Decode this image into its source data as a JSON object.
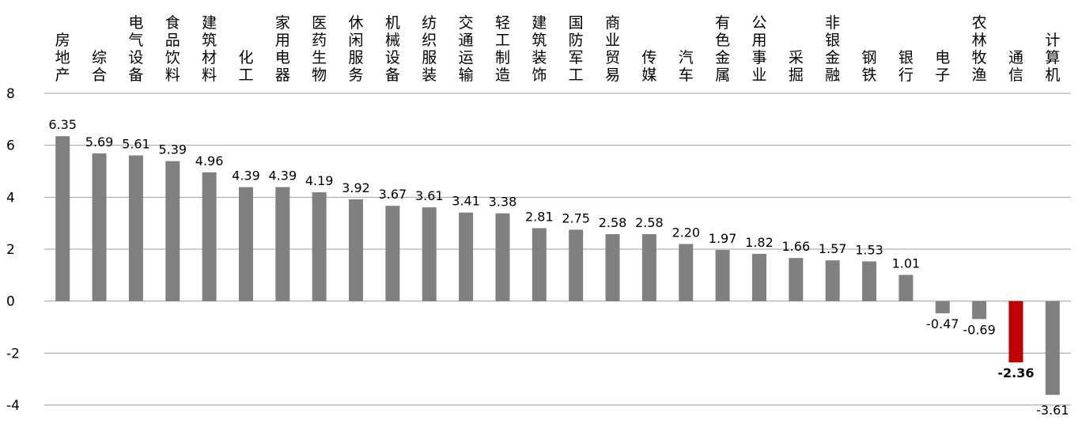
{
  "chart_data": {
    "type": "bar",
    "categories": [
      "房地产",
      "综合",
      "电气设备",
      "食品饮料",
      "建筑材料",
      "化工",
      "家用电器",
      "医药生物",
      "休闲服务",
      "机械设备",
      "纺织服装",
      "交通运输",
      "轻工制造",
      "建筑装饰",
      "国防军工",
      "商业贸易",
      "传媒",
      "汽车",
      "有色金属",
      "公用事业",
      "采掘",
      "非银金融",
      "钢铁",
      "银行",
      "电子",
      "农林牧渔",
      "通信",
      "计算机"
    ],
    "values": [
      6.35,
      5.69,
      5.61,
      5.39,
      4.96,
      4.39,
      4.39,
      4.19,
      3.92,
      3.67,
      3.61,
      3.41,
      3.38,
      2.81,
      2.75,
      2.58,
      2.58,
      2.2,
      1.97,
      1.82,
      1.66,
      1.57,
      1.53,
      1.01,
      -0.47,
      -0.69,
      -2.36,
      -3.61
    ],
    "value_labels": [
      "6.35",
      "5.69",
      "5.61",
      "5.39",
      "4.96",
      "4.39",
      "4.39",
      "4.19",
      "3.92",
      "3.67",
      "3.61",
      "3.41",
      "3.38",
      "2.81",
      "2.75",
      "2.58",
      "2.58",
      "2.20",
      "1.97",
      "1.82",
      "1.66",
      "1.57",
      "1.53",
      "1.01",
      "-0.47",
      "-0.69",
      "-2.36",
      "-3.61"
    ],
    "highlight_index": 26,
    "ylim": [
      -4,
      8
    ],
    "yticks": [
      "8",
      "6",
      "4",
      "2",
      "0",
      "-2",
      "-4"
    ],
    "grid": true,
    "colors": {
      "bar": "#808080",
      "highlight": "#c00000",
      "grid": "#a0a0a0"
    }
  }
}
